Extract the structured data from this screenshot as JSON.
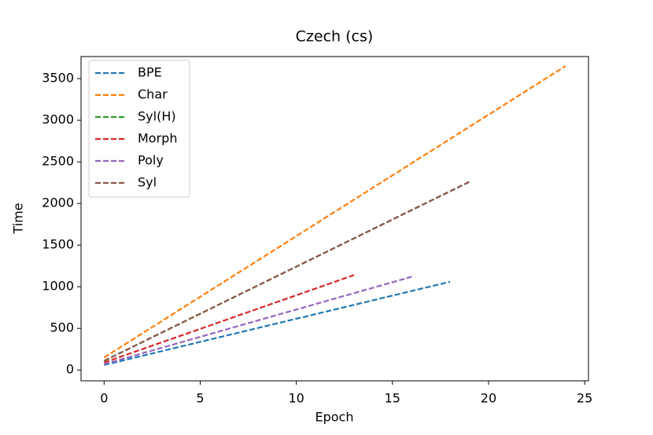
{
  "chart_data": {
    "type": "line",
    "title": "Czech (cs)",
    "xlabel": "Epoch",
    "ylabel": "Time",
    "xlim": [
      -1.2,
      25.2
    ],
    "xticks": [
      0,
      5,
      10,
      15,
      20,
      25
    ],
    "ylim": [
      -130,
      3765
    ],
    "yticks": [
      0,
      500,
      1000,
      1500,
      2000,
      2500,
      3000,
      3500
    ],
    "legend": "upper left",
    "series": [
      {
        "name": "BPE",
        "color": "#1f77b4",
        "x": [
          0,
          18
        ],
        "values": [
          60,
          1060
        ]
      },
      {
        "name": "Char",
        "color": "#ff7f0e",
        "x": [
          0,
          24
        ],
        "values": [
          150,
          3650
        ]
      },
      {
        "name": "Syl(H)",
        "color": "#2ca02c",
        "x": [
          0,
          19
        ],
        "values": [
          110,
          2260
        ]
      },
      {
        "name": "Morph",
        "color": "#d62728",
        "x": [
          0,
          13
        ],
        "values": [
          90,
          1140
        ]
      },
      {
        "name": "Poly",
        "color": "#9467bd",
        "x": [
          0,
          16
        ],
        "values": [
          70,
          1120
        ]
      },
      {
        "name": "Syl",
        "color": "#8c564b",
        "x": [
          0,
          19
        ],
        "values": [
          110,
          2260
        ]
      }
    ]
  }
}
